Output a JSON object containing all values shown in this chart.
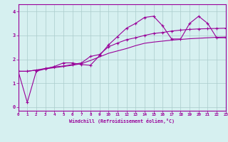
{
  "xlabel": "Windchill (Refroidissement éolien,°C)",
  "ylabel": "",
  "xlim": [
    0,
    23
  ],
  "ylim": [
    -0.15,
    4.3
  ],
  "xticks": [
    0,
    1,
    2,
    3,
    4,
    5,
    6,
    7,
    8,
    9,
    10,
    11,
    12,
    13,
    14,
    15,
    16,
    17,
    18,
    19,
    20,
    21,
    22,
    23
  ],
  "yticks": [
    0,
    1,
    2,
    3,
    4
  ],
  "bg_color": "#d6f0f0",
  "line_color": "#990099",
  "grid_color": "#aacccc",
  "line1_x": [
    0,
    1,
    2,
    3,
    4,
    5,
    6,
    7,
    8,
    9,
    10,
    11,
    12,
    13,
    14,
    15,
    16,
    17,
    18,
    19,
    20,
    21,
    22,
    23
  ],
  "line1_y": [
    1.5,
    0.2,
    1.5,
    1.6,
    1.7,
    1.85,
    1.85,
    1.78,
    1.75,
    2.15,
    2.6,
    2.95,
    3.3,
    3.5,
    3.75,
    3.8,
    3.4,
    2.85,
    2.85,
    3.5,
    3.8,
    3.5,
    2.9,
    2.9
  ],
  "line2_x": [
    0,
    1,
    2,
    3,
    4,
    5,
    6,
    7,
    8,
    9,
    10,
    11,
    12,
    13,
    14,
    15,
    16,
    17,
    18,
    19,
    20,
    21,
    22,
    23
  ],
  "line2_y": [
    1.5,
    1.5,
    1.55,
    1.6,
    1.65,
    1.7,
    1.75,
    1.82,
    1.95,
    2.1,
    2.25,
    2.35,
    2.45,
    2.57,
    2.67,
    2.72,
    2.76,
    2.8,
    2.83,
    2.86,
    2.88,
    2.9,
    2.92,
    2.93
  ],
  "line3_x": [
    0,
    1,
    2,
    3,
    4,
    5,
    6,
    7,
    8,
    9,
    10,
    11,
    12,
    13,
    14,
    15,
    16,
    17,
    18,
    19,
    20,
    21,
    22,
    23
  ],
  "line3_y": [
    1.5,
    1.5,
    1.55,
    1.62,
    1.68,
    1.72,
    1.78,
    1.85,
    2.12,
    2.2,
    2.52,
    2.68,
    2.82,
    2.9,
    3.0,
    3.08,
    3.12,
    3.18,
    3.22,
    3.25,
    3.27,
    3.28,
    3.29,
    3.3
  ]
}
